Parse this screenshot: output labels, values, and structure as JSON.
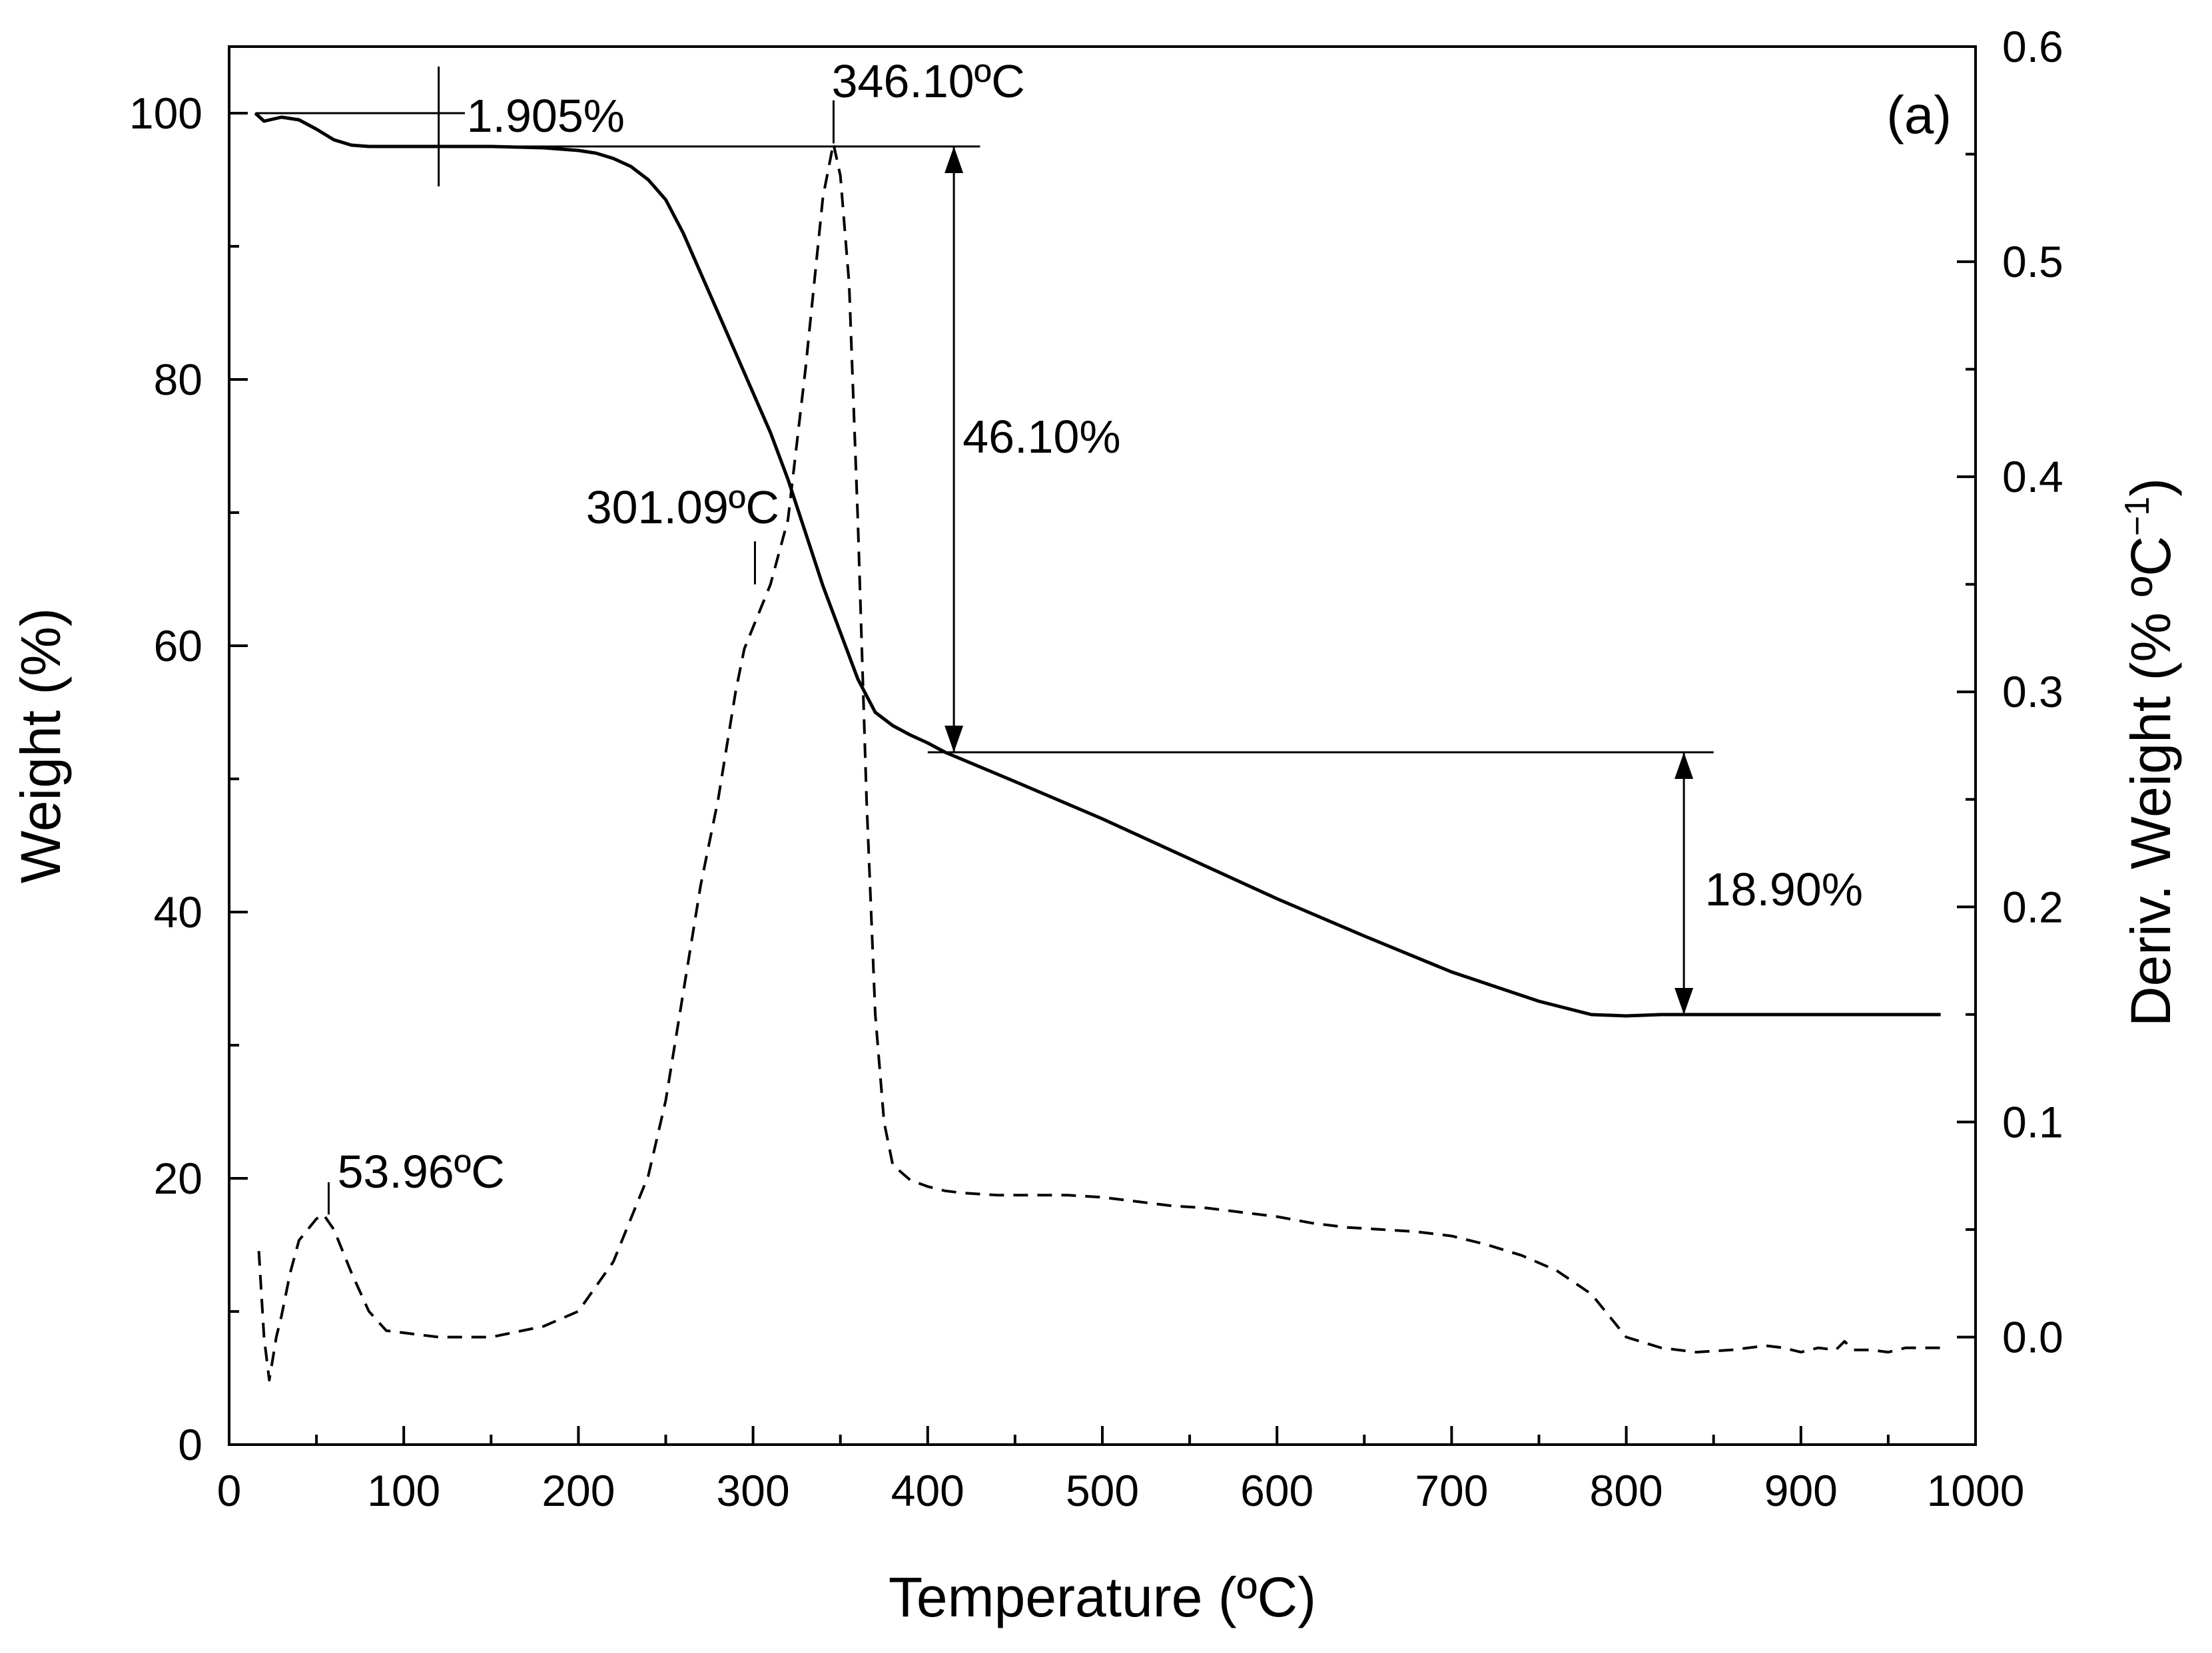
{
  "chart_data": {
    "type": "line",
    "title": "",
    "panel_label": "(a)",
    "xlabel": "Temperature (ºC)",
    "ylabel": "Weight (%)",
    "y2label_main": "Deriv. Weight (% ºC",
    "y2label_sup": "−1",
    "y2label_close": ")",
    "xlim": [
      0,
      1000
    ],
    "ylim": [
      0,
      105
    ],
    "y2lim": [
      -0.05,
      0.6
    ],
    "x_ticks": [
      0,
      100,
      200,
      300,
      400,
      500,
      600,
      700,
      800,
      900,
      1000
    ],
    "x_tick_labels": [
      "0",
      "100",
      "200",
      "300",
      "400",
      "500",
      "600",
      "700",
      "800",
      "900",
      "1000"
    ],
    "y_ticks": [
      0,
      20,
      40,
      60,
      80,
      100
    ],
    "y_tick_labels": [
      "0",
      "20",
      "40",
      "60",
      "80",
      "100"
    ],
    "y2_ticks": [
      0.0,
      0.1,
      0.2,
      0.3,
      0.4,
      0.5,
      0.6
    ],
    "y2_tick_labels": [
      "0.0",
      "0.1",
      "0.2",
      "0.3",
      "0.4",
      "0.5",
      "0.6"
    ],
    "series": [
      {
        "name": "Weight",
        "axis": "left",
        "style": "solid",
        "x": [
          15,
          20,
          30,
          40,
          50,
          60,
          70,
          80,
          90,
          100,
          120,
          150,
          180,
          200,
          210,
          220,
          230,
          240,
          250,
          260,
          270,
          280,
          290,
          300,
          310,
          320,
          330,
          340,
          350,
          360,
          370,
          380,
          390,
          400,
          410,
          450,
          500,
          550,
          600,
          650,
          700,
          750,
          780,
          800,
          820,
          850,
          900,
          950,
          980
        ],
        "values": [
          100,
          99.4,
          99.7,
          99.5,
          98.8,
          98.0,
          97.6,
          97.5,
          97.5,
          97.5,
          97.5,
          97.5,
          97.4,
          97.2,
          97.0,
          96.6,
          96.0,
          95.0,
          93.5,
          91.0,
          88.0,
          85.0,
          82.0,
          79.0,
          76.0,
          72.5,
          68.5,
          64.5,
          61.0,
          57.5,
          55.0,
          54.0,
          53.3,
          52.7,
          52.0,
          49.8,
          47.0,
          44.0,
          41.0,
          38.2,
          35.5,
          33.3,
          32.3,
          32.2,
          32.3,
          32.3,
          32.3,
          32.3,
          32.3
        ]
      },
      {
        "name": "Deriv. Weight",
        "axis": "right",
        "style": "dashed",
        "x": [
          17,
          20,
          23,
          27,
          30,
          35,
          40,
          45,
          50,
          54,
          60,
          70,
          80,
          90,
          100,
          120,
          150,
          180,
          200,
          220,
          240,
          250,
          260,
          270,
          280,
          290,
          295,
          300,
          305,
          310,
          320,
          330,
          340,
          346,
          350,
          355,
          360,
          365,
          370,
          375,
          380,
          390,
          400,
          410,
          420,
          440,
          460,
          480,
          500,
          520,
          540,
          560,
          580,
          600,
          620,
          640,
          660,
          680,
          700,
          720,
          740,
          760,
          780,
          800,
          820,
          840,
          860,
          880,
          890,
          900,
          910,
          920,
          925,
          930,
          940,
          950,
          960,
          970,
          980
        ],
        "values": [
          0.04,
          0.0,
          -0.02,
          0.0,
          0.01,
          0.03,
          0.045,
          0.05,
          0.055,
          0.057,
          0.05,
          0.03,
          0.012,
          0.003,
          0.002,
          0.0,
          0.0,
          0.005,
          0.012,
          0.035,
          0.075,
          0.11,
          0.16,
          0.21,
          0.25,
          0.3,
          0.32,
          0.33,
          0.34,
          0.35,
          0.38,
          0.45,
          0.53,
          0.555,
          0.54,
          0.49,
          0.38,
          0.25,
          0.15,
          0.1,
          0.08,
          0.073,
          0.07,
          0.068,
          0.067,
          0.066,
          0.066,
          0.066,
          0.065,
          0.063,
          0.061,
          0.06,
          0.058,
          0.056,
          0.053,
          0.051,
          0.05,
          0.049,
          0.047,
          0.043,
          0.038,
          0.031,
          0.02,
          0.0,
          -0.005,
          -0.007,
          -0.006,
          -0.004,
          -0.005,
          -0.007,
          -0.005,
          -0.006,
          -0.002,
          -0.006,
          -0.006,
          -0.007,
          -0.005,
          -0.005,
          -0.005
        ]
      }
    ],
    "annotations": [
      {
        "label": "1.905%",
        "x": 120,
        "y": 100
      },
      {
        "label": "346.10ºC",
        "x": 346.1,
        "y": 98
      },
      {
        "label": "301.09ºC",
        "x": 301.09,
        "y": 67
      },
      {
        "label": "46.10%",
        "x": 415,
        "y": 75
      },
      {
        "label": "18.90%",
        "x": 840,
        "y": 42
      },
      {
        "label": "53.96ºC",
        "x": 53.96,
        "y": 19
      }
    ]
  }
}
